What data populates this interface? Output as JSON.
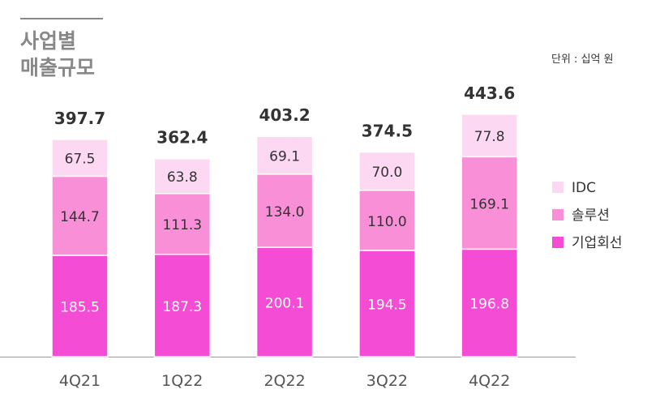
{
  "chart_data": {
    "type": "bar",
    "stacked": true,
    "title": "사업별\n매출규모",
    "title_lines": [
      "사업별",
      "매출규모"
    ],
    "unit_label": "단위 : 십억 원",
    "categories": [
      "4Q21",
      "1Q22",
      "2Q22",
      "3Q22",
      "4Q22"
    ],
    "series": [
      {
        "name": "기업회선",
        "color": "#f54cd6",
        "values": [
          185.5,
          187.3,
          200.1,
          194.5,
          196.8
        ]
      },
      {
        "name": "솔루션",
        "color": "#f98fd6",
        "values": [
          144.7,
          111.3,
          134.0,
          110.0,
          169.1
        ]
      },
      {
        "name": "IDC",
        "color": "#fdd8f3",
        "values": [
          67.5,
          63.8,
          69.1,
          70.0,
          77.8
        ]
      }
    ],
    "totals": [
      397.7,
      362.4,
      403.2,
      374.5,
      443.6
    ],
    "legend": [
      "IDC",
      "솔루션",
      "기업회선"
    ],
    "legend_position": "right",
    "ylim": [
      0,
      443.6
    ],
    "grid": false
  }
}
